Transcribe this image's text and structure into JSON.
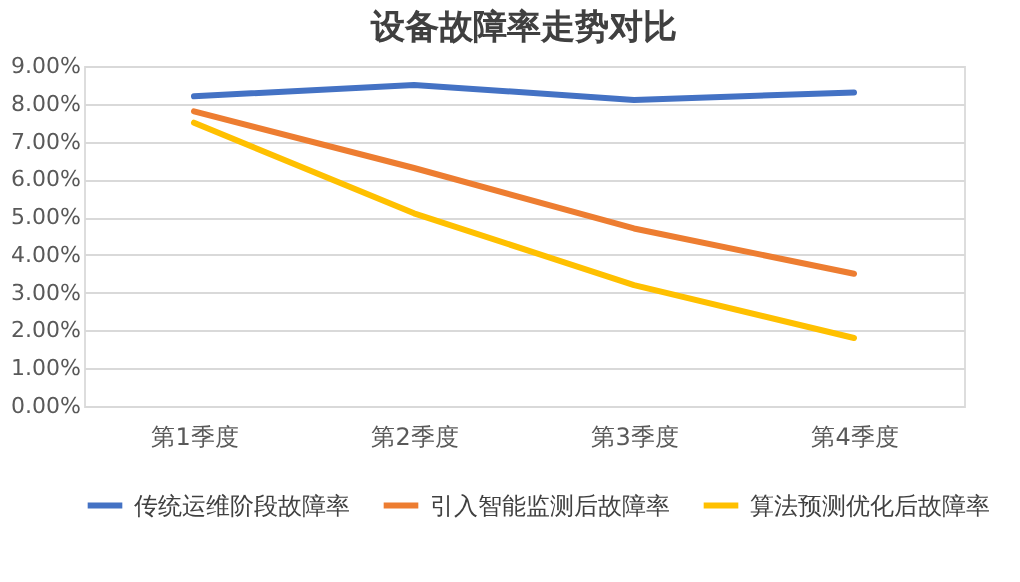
{
  "chart_data": {
    "type": "line",
    "title": "设备故障率走势对比",
    "categories": [
      "第1季度",
      "第2季度",
      "第3季度",
      "第4季度"
    ],
    "series": [
      {
        "name": "传统运维阶段故障率",
        "color": "#4472c4",
        "values": [
          8.2,
          8.5,
          8.1,
          8.3
        ]
      },
      {
        "name": "引入智能监测后故障率",
        "color": "#ed7d31",
        "values": [
          7.8,
          6.3,
          4.7,
          3.5
        ]
      },
      {
        "name": "算法预测优化后故障率",
        "color": "#ffc000",
        "values": [
          7.5,
          5.1,
          3.2,
          1.8
        ]
      }
    ],
    "ylim": [
      0,
      9
    ],
    "yticks": [
      {
        "value": 0,
        "label": "0.00%"
      },
      {
        "value": 1,
        "label": "1.00%"
      },
      {
        "value": 2,
        "label": "2.00%"
      },
      {
        "value": 3,
        "label": "3.00%"
      },
      {
        "value": 4,
        "label": "4.00%"
      },
      {
        "value": 5,
        "label": "5.00%"
      },
      {
        "value": 6,
        "label": "6.00%"
      },
      {
        "value": 7,
        "label": "7.00%"
      },
      {
        "value": 8,
        "label": "8.00%"
      },
      {
        "value": 9,
        "label": "9.00%"
      }
    ],
    "grid": "y",
    "legend": "bottom",
    "marker": "none",
    "line_style": "solid"
  }
}
